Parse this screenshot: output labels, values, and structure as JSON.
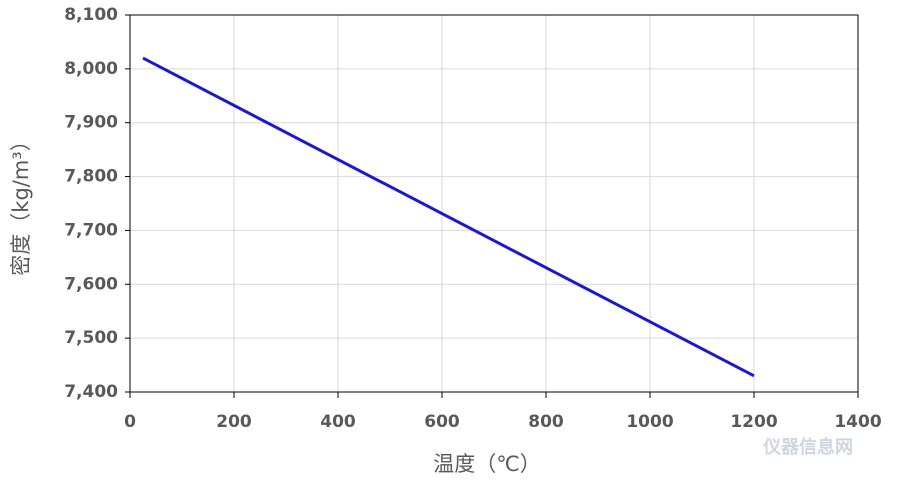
{
  "chart_data": {
    "type": "line",
    "xlabel": "温度（℃）",
    "ylabel": "密度（kg/m³）",
    "watermark": "仪器信息网",
    "x": [
      25,
      1200
    ],
    "series": [
      {
        "name": "密度",
        "color": "#1a1acc",
        "values": [
          8020,
          7430
        ]
      }
    ],
    "xlim": [
      0,
      1400
    ],
    "xticks": [
      0,
      200,
      400,
      600,
      800,
      1000,
      1200,
      1400
    ],
    "ylim": [
      7400,
      8100
    ],
    "yticks": [
      {
        "value": 7400,
        "label": "7,400"
      },
      {
        "value": 7500,
        "label": "7,500"
      },
      {
        "value": 7600,
        "label": "7,600"
      },
      {
        "value": 7700,
        "label": "7,700"
      },
      {
        "value": 7800,
        "label": "7,800"
      },
      {
        "value": 7900,
        "label": "7,900"
      },
      {
        "value": 8000,
        "label": "8,000"
      },
      {
        "value": 8100,
        "label": "8,100"
      }
    ],
    "grid": true
  }
}
